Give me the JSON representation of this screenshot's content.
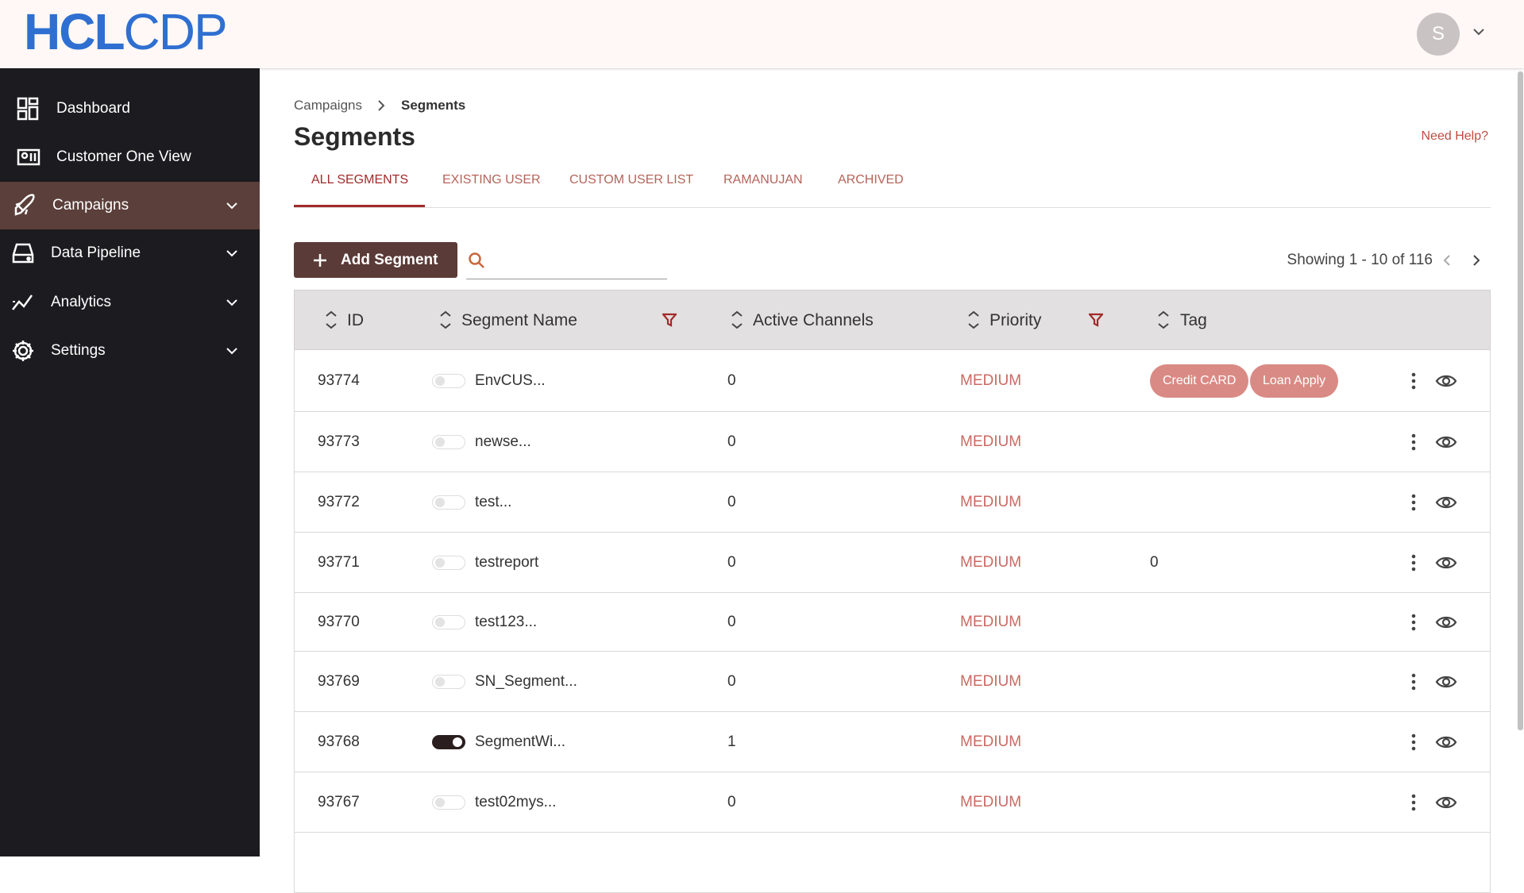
{
  "header": {
    "logo_bold": "HCL",
    "logo_light": "CDP",
    "avatar": "S"
  },
  "sidebar": {
    "items": [
      "Dashboard",
      "Customer One View",
      "Campaigns",
      "Data Pipeline",
      "Analytics",
      "Settings"
    ]
  },
  "breadcrumb": [
    "Campaigns",
    "Segments"
  ],
  "page": {
    "title": "Segments",
    "help": "Need Help?"
  },
  "tabs": [
    "ALL SEGMENTS",
    "EXISTING USER",
    "CUSTOM USER LIST",
    "RAMANUJAN",
    "ARCHIVED"
  ],
  "toolbar": {
    "button": "Add Segment",
    "showing": "Showing 1 - 10 of 116"
  },
  "table": {
    "columns": [
      "ID",
      "Segment Name",
      "Active Channels",
      "Priority",
      "Tag"
    ],
    "rows": [
      {
        "id": "93774",
        "enabled": false,
        "name": "EnvCUS...",
        "channels": "0",
        "priority": "MEDIUM",
        "tags": [
          "Credit CARD",
          "Loan Apply"
        ]
      },
      {
        "id": "93773",
        "enabled": false,
        "name": "newse...",
        "channels": "0",
        "priority": "MEDIUM"
      },
      {
        "id": "93772",
        "enabled": false,
        "name": "test...",
        "channels": "0",
        "priority": "MEDIUM"
      },
      {
        "id": "93771",
        "enabled": false,
        "name": "testreport",
        "channels": "0",
        "priority": "MEDIUM",
        "tag_text": "0"
      },
      {
        "id": "93770",
        "enabled": false,
        "name": "test123...",
        "channels": "0",
        "priority": "MEDIUM"
      },
      {
        "id": "93769",
        "enabled": false,
        "name": "SN_Segment...",
        "channels": "0",
        "priority": "MEDIUM"
      },
      {
        "id": "93768",
        "enabled": true,
        "name": "SegmentWi...",
        "channels": "1",
        "priority": "MEDIUM"
      },
      {
        "id": "93767",
        "enabled": false,
        "name": "test02mys...",
        "channels": "0",
        "priority": "MEDIUM"
      }
    ]
  }
}
